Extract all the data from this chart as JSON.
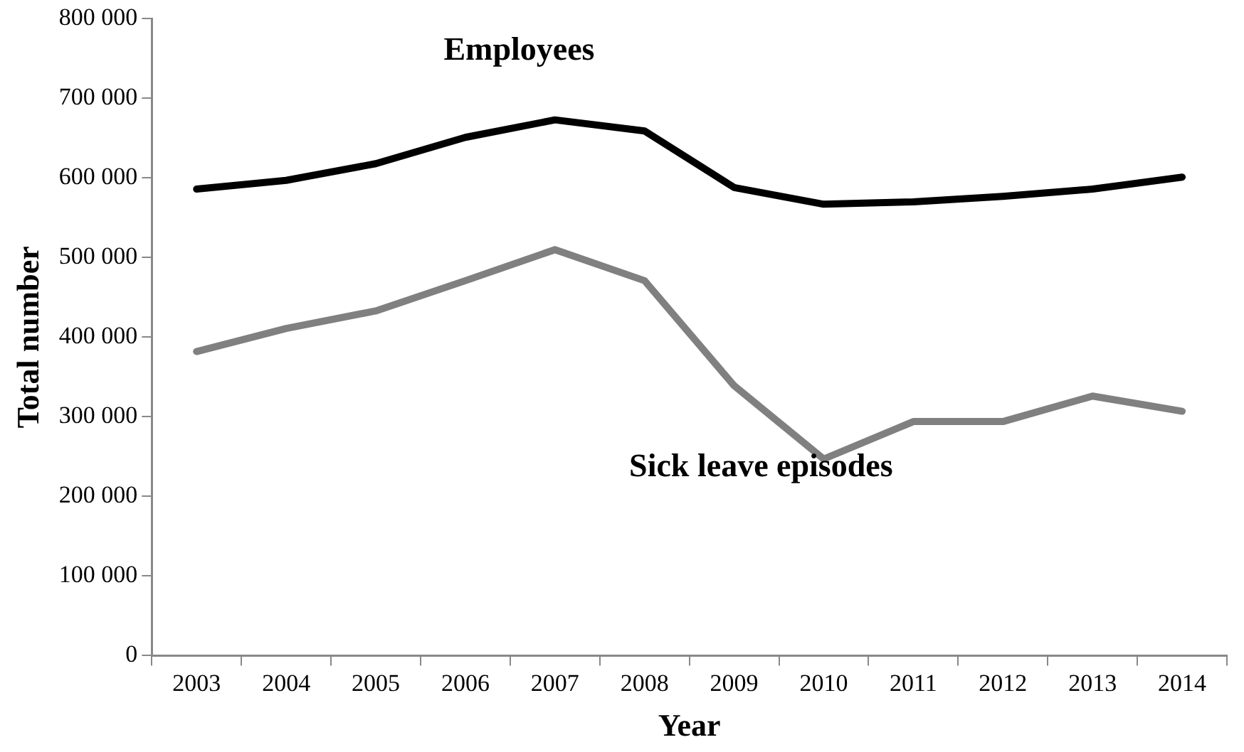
{
  "chart_data": {
    "type": "line",
    "xlabel": "Year",
    "ylabel": "Total number",
    "categories": [
      "2003",
      "2004",
      "2005",
      "2006",
      "2007",
      "2008",
      "2009",
      "2010",
      "2011",
      "2012",
      "2013",
      "2014"
    ],
    "series": [
      {
        "name": "Employees",
        "color": "#000000",
        "values": [
          586000,
          597000,
          618000,
          651000,
          673000,
          659000,
          588000,
          567000,
          570000,
          577000,
          586000,
          601000
        ]
      },
      {
        "name": "Sick leave episodes",
        "color": "#808080",
        "values": [
          382000,
          411000,
          433000,
          471000,
          510000,
          471000,
          339000,
          247000,
          294000,
          294000,
          326000,
          307000
        ]
      }
    ],
    "ylim": [
      0,
      800000
    ],
    "yticks": [
      0,
      {
        "value": 100000,
        "label": "100 000"
      },
      {
        "value": 200000,
        "label": "200 000"
      },
      {
        "value": 300000,
        "label": "300 000"
      },
      {
        "value": 400000,
        "label": "400 000"
      },
      {
        "value": 500000,
        "label": "500 000"
      },
      {
        "value": 600000,
        "label": "600 000"
      },
      {
        "value": 700000,
        "label": "700 000"
      },
      {
        "value": 800000,
        "label": "800 000"
      }
    ],
    "grid": false,
    "legend": false,
    "marker": "none",
    "line_style": "solid"
  }
}
